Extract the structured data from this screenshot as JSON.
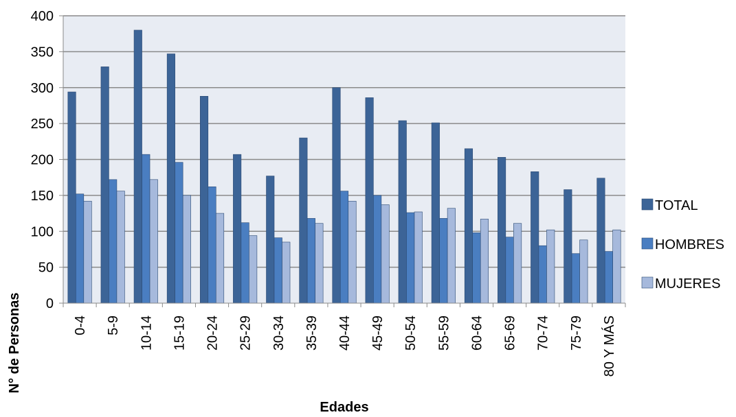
{
  "chart_data": {
    "type": "bar",
    "title": "",
    "xlabel": "Edades",
    "ylabel": "N° de Personas",
    "ylim": [
      0,
      400
    ],
    "yticks": [
      0,
      50,
      100,
      150,
      200,
      250,
      300,
      350,
      400
    ],
    "grid": true,
    "legend_position": "right",
    "categories": [
      "0-4",
      "5-9",
      "10-14",
      "15-19",
      "20-24",
      "25-29",
      "30-34",
      "35-39",
      "40-44",
      "45-49",
      "50-54",
      "55-59",
      "60-64",
      "65-69",
      "70-74",
      "75-79",
      "80 Y MÁS"
    ],
    "series": [
      {
        "name": "TOTAL",
        "color": "#3c6497",
        "values": [
          294,
          329,
          380,
          347,
          288,
          207,
          177,
          230,
          300,
          286,
          254,
          251,
          215,
          203,
          183,
          158,
          174
        ]
      },
      {
        "name": "HOMBRES",
        "color": "#4a7ec1",
        "values": [
          152,
          172,
          207,
          196,
          162,
          112,
          91,
          118,
          156,
          150,
          126,
          118,
          98,
          92,
          80,
          69,
          72
        ]
      },
      {
        "name": "MUJERES",
        "color": "#a6b9dc",
        "values": [
          142,
          156,
          172,
          150,
          125,
          94,
          85,
          111,
          142,
          137,
          127,
          132,
          117,
          111,
          102,
          88,
          102
        ]
      }
    ],
    "plot_background": "#e8ecf3",
    "gridline_color": "#8a8a8a"
  }
}
